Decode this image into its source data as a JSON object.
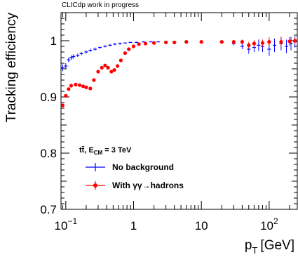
{
  "chart_data": {
    "type": "scatter",
    "header": "CLICdp work in progress",
    "xlabel_main": "p",
    "xlabel_sub": "T",
    "xlabel_unit": "[GeV]",
    "ylabel": "Tracking efficiency",
    "xscale": "log",
    "xlim": [
      0.085,
      260
    ],
    "ylim": [
      0.7,
      1.05
    ],
    "x_ticks": [
      {
        "value": 0.1,
        "base": "10",
        "exp": "−1"
      },
      {
        "value": 1,
        "base": "1",
        "exp": ""
      },
      {
        "value": 10,
        "base": "10",
        "exp": ""
      },
      {
        "value": 100,
        "base": "10",
        "exp": "2"
      }
    ],
    "y_ticks": [
      {
        "value": 0.7,
        "label": "0.7"
      },
      {
        "value": 0.8,
        "label": "0.8"
      },
      {
        "value": 0.9,
        "label": "0.9"
      },
      {
        "value": 1.0,
        "label": "1"
      }
    ],
    "legend": {
      "header_main": "tt̄, E",
      "header_sub": "CM",
      "header_tail": " = 3 TeV",
      "placement": "lower-left"
    },
    "series": [
      {
        "name": "No background",
        "color": "#0000ff",
        "marker": "cross",
        "x": [
          0.09,
          0.1,
          0.11,
          0.12,
          0.13,
          0.15,
          0.17,
          0.2,
          0.23,
          0.27,
          0.32,
          0.38,
          0.45,
          0.53,
          0.63,
          0.75,
          0.9,
          1.1,
          1.4,
          1.8,
          2.3,
          3,
          4,
          6,
          10,
          20,
          30,
          40,
          50,
          60,
          70,
          80,
          100,
          120,
          150,
          180,
          210,
          240
        ],
        "y": [
          0.952,
          0.955,
          0.966,
          0.97,
          0.972,
          0.974,
          0.977,
          0.98,
          0.983,
          0.985,
          0.988,
          0.99,
          0.992,
          0.994,
          0.995,
          0.996,
          0.997,
          0.997,
          0.998,
          0.998,
          0.998,
          0.998,
          0.998,
          0.998,
          0.998,
          0.997,
          0.995,
          0.99,
          0.985,
          0.988,
          0.992,
          0.99,
          0.985,
          0.992,
          0.995,
          0.99,
          0.995,
          0.998
        ],
        "err": [
          0.006,
          0.005,
          0.004,
          0.004,
          0.004,
          0.003,
          0.003,
          0.003,
          0.003,
          0.003,
          0.002,
          0.002,
          0.002,
          0.002,
          0.002,
          0.001,
          0.001,
          0.001,
          0.001,
          0.001,
          0.001,
          0.001,
          0.001,
          0.001,
          0.001,
          0.002,
          0.003,
          0.005,
          0.008,
          0.008,
          0.01,
          0.01,
          0.012,
          0.012,
          0.012,
          0.012,
          0.012,
          0.01
        ]
      },
      {
        "name": "With γγ→hadrons",
        "color": "#ff0000",
        "marker": "circle",
        "x": [
          0.09,
          0.1,
          0.11,
          0.12,
          0.14,
          0.16,
          0.18,
          0.2,
          0.23,
          0.26,
          0.3,
          0.34,
          0.38,
          0.42,
          0.47,
          0.52,
          0.58,
          0.65,
          0.75,
          0.85,
          1.0,
          1.2,
          1.5,
          2,
          3,
          4,
          6,
          10,
          20,
          30,
          40,
          50,
          60,
          80,
          100,
          150,
          200,
          240
        ],
        "y": [
          0.885,
          0.902,
          0.914,
          0.92,
          0.922,
          0.921,
          0.919,
          0.917,
          0.915,
          0.93,
          0.945,
          0.952,
          0.956,
          0.952,
          0.945,
          0.948,
          0.955,
          0.965,
          0.978,
          0.985,
          0.99,
          0.994,
          0.995,
          0.996,
          0.997,
          0.997,
          0.998,
          0.998,
          0.998,
          0.998,
          0.998,
          0.992,
          0.995,
          0.996,
          0.998,
          0.998,
          0.999,
          1.0
        ],
        "err": [
          0.002,
          0.002,
          0.002,
          0.002,
          0.002,
          0.002,
          0.002,
          0.002,
          0.002,
          0.002,
          0.002,
          0.002,
          0.002,
          0.002,
          0.002,
          0.002,
          0.002,
          0.002,
          0.002,
          0.002,
          0.001,
          0.001,
          0.001,
          0.001,
          0.001,
          0.001,
          0.001,
          0.001,
          0.002,
          0.003,
          0.004,
          0.006,
          0.006,
          0.006,
          0.008,
          0.008,
          0.008,
          0.006
        ]
      }
    ]
  }
}
